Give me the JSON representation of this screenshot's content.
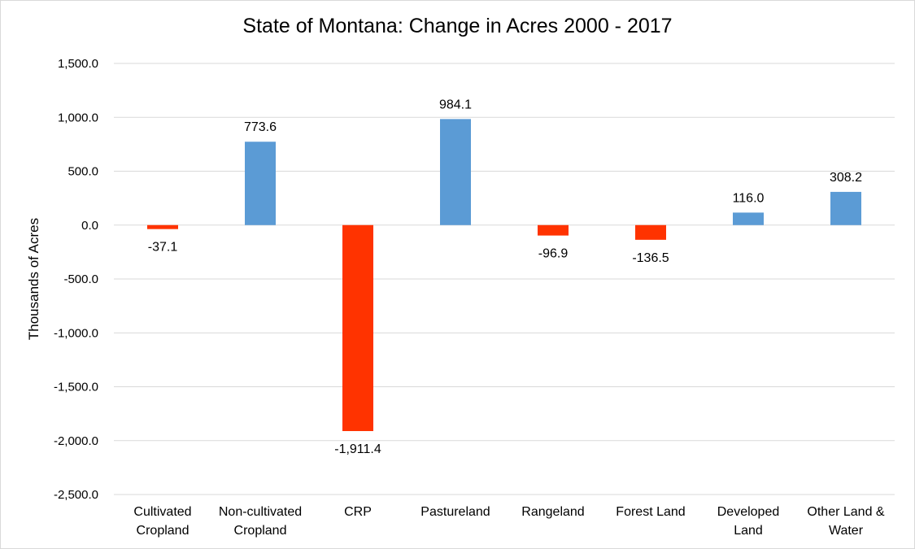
{
  "chart_data": {
    "type": "bar",
    "title": "State of Montana: Change in Acres 2000 - 2017",
    "ylabel": "Thousands of Acres",
    "ylim": [
      -2500,
      1500
    ],
    "yticks": [
      1500,
      1000,
      500,
      0,
      -500,
      -1000,
      -1500,
      -2000,
      -2500
    ],
    "ytick_labels": [
      "1,500.0",
      "1,000.0",
      "500.0",
      "0.0",
      "-500.0",
      "-1,000.0",
      "-1,500.0",
      "-2,000.0",
      "-2,500.0"
    ],
    "grid": true,
    "legend": "none",
    "positive_color": "#5b9bd5",
    "negative_color": "#ff3300",
    "categories": [
      [
        "Cultivated",
        "Cropland"
      ],
      [
        "Non-cultivated",
        "Cropland"
      ],
      [
        "CRP"
      ],
      [
        "Pastureland"
      ],
      [
        "Rangeland"
      ],
      [
        "Forest Land"
      ],
      [
        "Developed",
        "Land"
      ],
      [
        "Other Land &",
        "Water"
      ]
    ],
    "values": [
      -37.1,
      773.6,
      -1911.4,
      984.1,
      -96.9,
      -136.5,
      116.0,
      308.2
    ],
    "data_labels": [
      "-37.1",
      "773.6",
      "-1,911.4",
      "984.1",
      "-96.9",
      "-136.5",
      "116.0",
      "308.2"
    ]
  }
}
